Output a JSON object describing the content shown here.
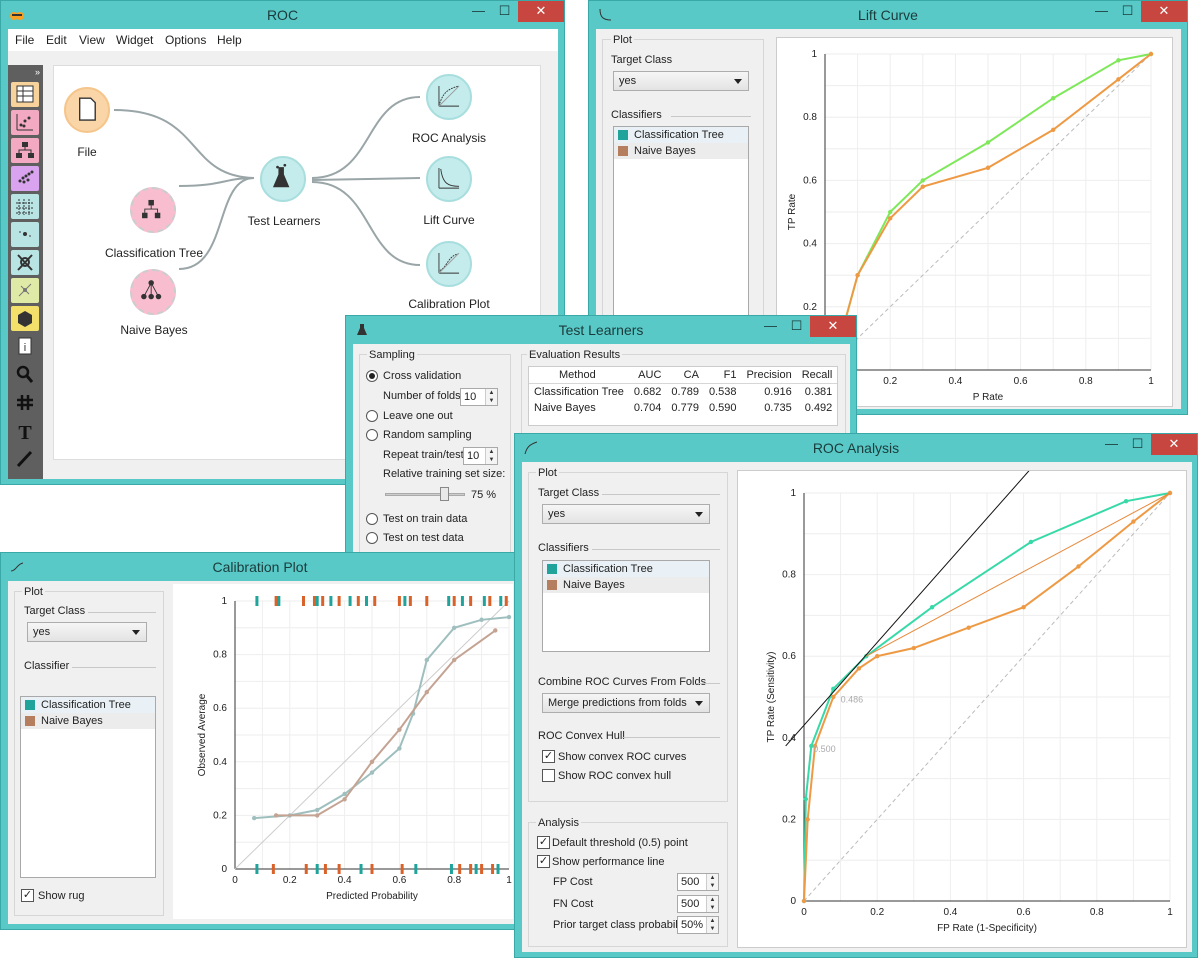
{
  "colors": {
    "window_frame": "#59c9c7",
    "close_button": "#c7463f",
    "tree_series": "#1fa39a",
    "bayes_series": "#d9622b",
    "tree_line": "#38d9a8",
    "bayes_line": "#ee9a45",
    "lift_tree_line": "#7fe85a"
  },
  "main_window": {
    "title": "ROC",
    "menu": [
      "File",
      "Edit",
      "View",
      "Widget",
      "Options",
      "Help"
    ],
    "toolbar_icons": [
      "data-table-icon",
      "scatter-plot-icon",
      "tree-viewer-icon",
      "distributions-icon",
      "heat-map-icon",
      "mds-icon",
      "network-icon",
      "sieve-icon",
      "box-plot-icon",
      "info-icon",
      "search-icon",
      "grid-icon",
      "text-icon",
      "brush-icon"
    ],
    "nodes": {
      "file": "File",
      "classification_tree": "Classification Tree",
      "naive_bayes": "Naive Bayes",
      "test_learners": "Test Learners",
      "roc_analysis": "ROC Analysis",
      "lift_curve": "Lift Curve",
      "calibration_plot": "Calibration Plot"
    }
  },
  "lift_window": {
    "title": "Lift Curve",
    "plot_group": "Plot",
    "target_class_label": "Target Class",
    "target_class_value": "yes",
    "classifiers_label": "Classifiers",
    "classifiers": [
      "Classification Tree",
      "Naive Bayes"
    ],
    "chart_data": {
      "type": "line",
      "xlabel": "P Rate",
      "ylabel": "TP Rate",
      "x_ticks": [
        "0.2",
        "0.4",
        "0.6",
        "0.8",
        "1"
      ],
      "y_ticks": [
        "0.2",
        "0.4",
        "0.6",
        "0.8",
        "1"
      ],
      "series": [
        {
          "name": "Classification Tree",
          "x": [
            0.0,
            0.06,
            0.1,
            0.2,
            0.3,
            0.5,
            0.7,
            0.9,
            1.0
          ],
          "y": [
            0.0,
            0.15,
            0.3,
            0.5,
            0.6,
            0.72,
            0.86,
            0.98,
            1.0
          ]
        },
        {
          "name": "Naive Bayes",
          "x": [
            0.0,
            0.06,
            0.1,
            0.2,
            0.3,
            0.5,
            0.7,
            0.9,
            1.0
          ],
          "y": [
            0.0,
            0.15,
            0.3,
            0.48,
            0.58,
            0.64,
            0.76,
            0.92,
            1.0
          ]
        }
      ]
    }
  },
  "test_window": {
    "title": "Test Learners",
    "sampling": {
      "title": "Sampling",
      "cross_validation": "Cross validation",
      "folds_label": "Number of folds:",
      "folds_value": "10",
      "leave_one_out": "Leave one out",
      "random_sampling": "Random sampling",
      "repeat_label": "Repeat train/test",
      "repeat_value": "10",
      "train_size_label": "Relative training set size:",
      "train_size_value": "75 %",
      "train_size_fraction": 0.75,
      "test_on_train": "Test on train data",
      "test_on_test": "Test on test data"
    },
    "results": {
      "title": "Evaluation Results",
      "headers": [
        "Method",
        "AUC",
        "CA",
        "F1",
        "Precision",
        "Recall"
      ],
      "rows": [
        [
          "Classification Tree",
          "0.682",
          "0.789",
          "0.538",
          "0.916",
          "0.381"
        ],
        [
          "Naive Bayes",
          "0.704",
          "0.779",
          "0.590",
          "0.735",
          "0.492"
        ]
      ]
    }
  },
  "calibration_window": {
    "title": "Calibration Plot",
    "plot_group": "Plot",
    "target_class_label": "Target Class",
    "target_class_value": "yes",
    "classifier_label": "Classifier",
    "classifiers": [
      "Classification Tree",
      "Naive Bayes"
    ],
    "show_rug": "Show rug",
    "chart_data": {
      "type": "line",
      "xlabel": "Predicted Probability",
      "ylabel": "Observed Average",
      "x_ticks": [
        "0",
        "0.2",
        "0.4",
        "0.6",
        "0.8",
        "1"
      ],
      "y_ticks": [
        "0",
        "0.2",
        "0.4",
        "0.6",
        "0.8",
        "1"
      ],
      "series": [
        {
          "name": "Classification Tree",
          "x": [
            0.07,
            0.2,
            0.3,
            0.4,
            0.5,
            0.6,
            0.65,
            0.7,
            0.8,
            0.9,
            1.0
          ],
          "y": [
            0.19,
            0.2,
            0.22,
            0.28,
            0.36,
            0.45,
            0.58,
            0.78,
            0.9,
            0.93,
            0.94
          ]
        },
        {
          "name": "Naive Bayes",
          "x": [
            0.15,
            0.3,
            0.4,
            0.5,
            0.6,
            0.7,
            0.8,
            0.95
          ],
          "y": [
            0.2,
            0.2,
            0.26,
            0.4,
            0.52,
            0.66,
            0.78,
            0.89
          ]
        }
      ]
    }
  },
  "roc_window": {
    "title": "ROC Analysis",
    "plot_group": "Plot",
    "target_class_label": "Target Class",
    "target_class_value": "yes",
    "classifiers_label": "Classifiers",
    "classifiers": [
      "Classification Tree",
      "Naive Bayes"
    ],
    "combine_label": "Combine ROC Curves From Folds",
    "combine_value": "Merge predictions from folds",
    "hull_label": "ROC Convex Hull",
    "show_convex_curves": "Show convex ROC curves",
    "show_convex_hull": "Show ROC convex hull",
    "analysis": {
      "title": "Analysis",
      "default_threshold": "Default threshold (0.5) point",
      "show_perf_line": "Show performance line",
      "fp_cost_label": "FP Cost",
      "fp_cost_value": "500",
      "fn_cost_label": "FN Cost",
      "fn_cost_value": "500",
      "prior_label": "Prior target class probability",
      "prior_value": "50%"
    },
    "chart_data": {
      "type": "line",
      "xlabel": "FP Rate (1-Specificity)",
      "ylabel": "TP Rate (Sensitivity)",
      "x_ticks": [
        "0",
        "0.2",
        "0.4",
        "0.6",
        "0.8",
        "1"
      ],
      "y_ticks": [
        "0",
        "0.2",
        "0.4",
        "0.6",
        "0.8",
        "1"
      ],
      "annotations": [
        "0.486",
        "0.500"
      ],
      "series": [
        {
          "name": "Classification Tree",
          "x": [
            0,
            0.005,
            0.02,
            0.08,
            0.17,
            0.35,
            0.62,
            0.88,
            1.0
          ],
          "y": [
            0,
            0.25,
            0.38,
            0.52,
            0.6,
            0.72,
            0.88,
            0.98,
            1.0
          ]
        },
        {
          "name": "Naive Bayes",
          "x": [
            0,
            0.01,
            0.03,
            0.08,
            0.15,
            0.2,
            0.3,
            0.45,
            0.6,
            0.75,
            0.9,
            1.0
          ],
          "y": [
            0,
            0.2,
            0.38,
            0.5,
            0.57,
            0.6,
            0.62,
            0.67,
            0.72,
            0.82,
            0.93,
            1.0
          ]
        }
      ]
    }
  }
}
